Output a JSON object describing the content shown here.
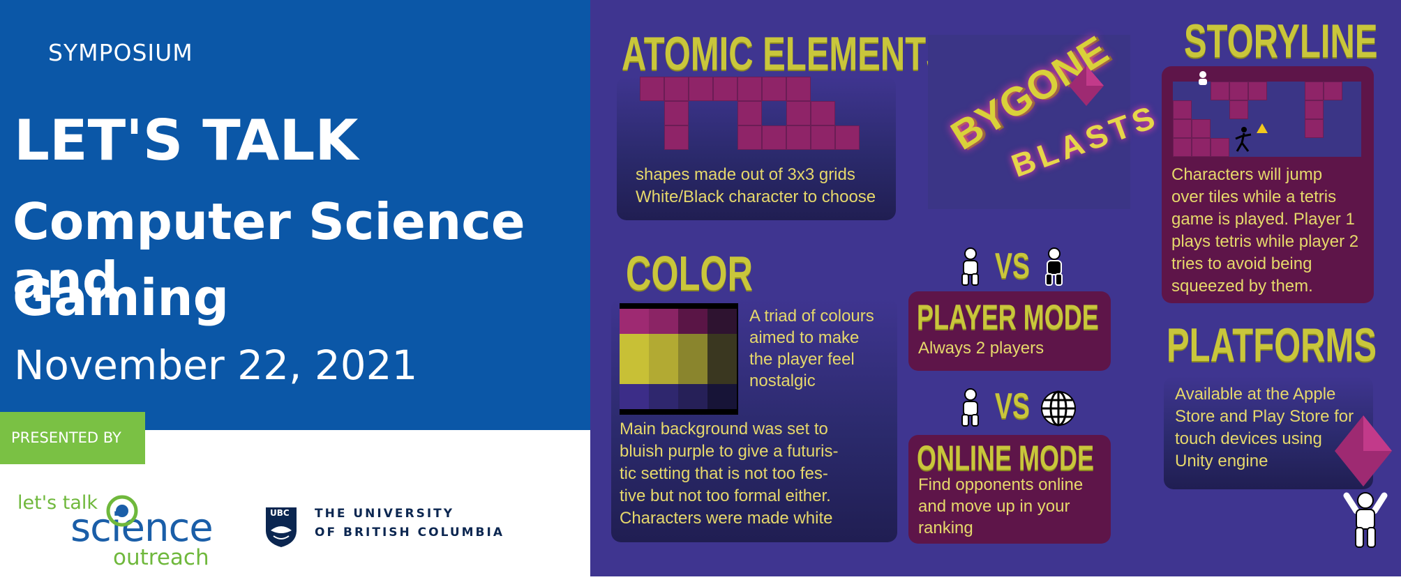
{
  "banner": {
    "category": "SYMPOSIUM",
    "title_line1": "LET'S TALK",
    "title_line2": "Computer Science and",
    "title_line3": "Gaming",
    "date": "November 22, 2021",
    "presented_by": "PRESENTED BY"
  },
  "sponsors": {
    "lts_line1": "let's talk",
    "lts_line2": "science",
    "lts_line3": "outreach",
    "ubc_badge": "UBC",
    "ubc_line1": "THE UNIVERSITY",
    "ubc_line2": "OF BRITISH COLUMBIA"
  },
  "poster": {
    "atomic": {
      "heading": "ATOMIC ELEMENTS",
      "line1": "shapes made out of 3x3 grids",
      "line2": "White/Black character to choose"
    },
    "logo": {
      "word1": "BYGONE",
      "word2": "BLASTS"
    },
    "storyline": {
      "heading": "STORYLINE",
      "lines": [
        "Characters will jump",
        "over tiles while a tetris",
        "game is played. Player 1",
        "plays tetris while player 2",
        "tries to avoid being",
        "squeezed by them."
      ]
    },
    "color": {
      "heading": "COLOR",
      "side_lines": [
        "A triad of colours",
        "aimed to make",
        "the player feel",
        "nostalgic"
      ],
      "bottom_lines": [
        "Main background was set to",
        "bluish purple to give a futuris-",
        "tic setting that is not too fes-",
        "tive but not too formal either.",
        "Characters were made white"
      ],
      "swatches": [
        [
          "#9e2a72",
          "#8b2465",
          "#5a1546",
          "#2e1330"
        ],
        [
          "#c8c036",
          "#b2aa33",
          "#8a852d",
          "#3a3720"
        ],
        [
          "#3c2d88",
          "#2f276e",
          "#262058",
          "#171437"
        ]
      ]
    },
    "player_mode": {
      "vs": "VS",
      "heading": "PLAYER MODE",
      "text": "Always 2 players"
    },
    "online_mode": {
      "vs": "VS",
      "heading": "ONLINE MODE",
      "lines": [
        "Find opponents online",
        "and move up in your",
        "ranking"
      ]
    },
    "platforms": {
      "heading": "PLATFORMS",
      "lines": [
        "Available at the Apple",
        "Store and Play Store for",
        "touch devices using",
        "Unity engine"
      ]
    }
  },
  "colors": {
    "banner_blue": "#0b57a7",
    "presented_green": "#7ac144",
    "poster_purple": "#3f3590",
    "panel_magenta": "#5e1549",
    "heading_yellow": "#c9c63b"
  }
}
